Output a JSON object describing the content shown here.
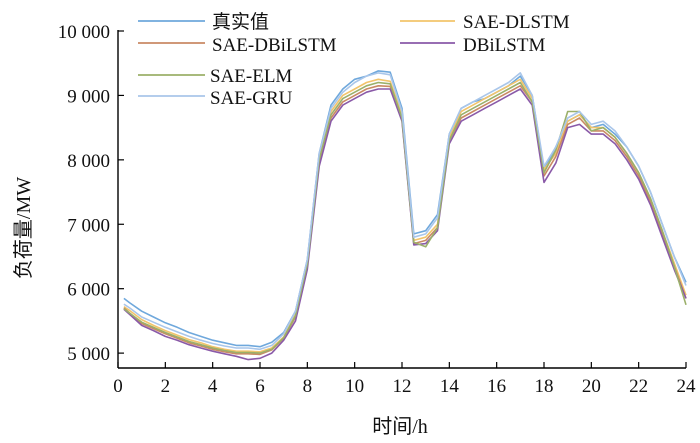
{
  "chart_data": {
    "type": "line",
    "xlabel": "时间/h",
    "ylabel": "负荷量/MW",
    "xlim": [
      0,
      24
    ],
    "ylim": [
      4800,
      10000
    ],
    "x_ticks": [
      "0",
      "2",
      "4",
      "6",
      "8",
      "10",
      "12",
      "14",
      "16",
      "18",
      "20",
      "22",
      "24"
    ],
    "y_ticks": [
      {
        "value": 5000,
        "label": "5 000"
      },
      {
        "value": 6000,
        "label": "6 000"
      },
      {
        "value": 7000,
        "label": "7 000"
      },
      {
        "value": 8000,
        "label": "8 000"
      },
      {
        "value": 9000,
        "label": "9 000"
      },
      {
        "value": 10000,
        "label": "10 000"
      }
    ],
    "grid": false,
    "legend_position": "top-left",
    "x": [
      0.25,
      0.5,
      1.0,
      1.5,
      2.0,
      2.5,
      3.0,
      3.5,
      4.0,
      4.5,
      5.0,
      5.5,
      6.0,
      6.5,
      7.0,
      7.5,
      8.0,
      8.5,
      9.0,
      9.5,
      10.0,
      10.5,
      11.0,
      11.5,
      12.0,
      12.5,
      13.0,
      13.5,
      14.0,
      14.5,
      15.0,
      15.5,
      16.0,
      16.5,
      17.0,
      17.5,
      18.0,
      18.5,
      19.0,
      19.5,
      20.0,
      20.5,
      21.0,
      21.5,
      22.0,
      22.5,
      23.0,
      23.5,
      24.0
    ],
    "series": [
      {
        "name": "真实值",
        "color": "#6fa8dc",
        "values": [
          5850,
          5780,
          5650,
          5560,
          5470,
          5400,
          5320,
          5260,
          5200,
          5160,
          5120,
          5120,
          5100,
          5170,
          5320,
          5650,
          6450,
          8100,
          8850,
          9100,
          9250,
          9300,
          9380,
          9360,
          8800,
          6850,
          6900,
          7150,
          8400,
          8800,
          8900,
          8950,
          9050,
          9150,
          9300,
          9000,
          7850,
          8200,
          8600,
          8700,
          8500,
          8550,
          8400,
          8200,
          7900,
          7500,
          7000,
          6500,
          6100
        ]
      },
      {
        "name": "SAE-DLSTM",
        "color": "#f2c46b",
        "values": [
          5720,
          5660,
          5520,
          5430,
          5350,
          5280,
          5210,
          5160,
          5100,
          5060,
          5030,
          5030,
          5020,
          5080,
          5250,
          5600,
          6400,
          8050,
          8750,
          9000,
          9100,
          9200,
          9250,
          9220,
          8700,
          6750,
          6800,
          7000,
          8350,
          8750,
          8850,
          8950,
          9050,
          9150,
          9250,
          8950,
          7850,
          8100,
          8600,
          8700,
          8500,
          8500,
          8350,
          8100,
          7800,
          7400,
          6900,
          6400,
          5900
        ]
      },
      {
        "name": "SAE-DBiLSTM",
        "color": "#c98a64",
        "values": [
          5700,
          5620,
          5460,
          5380,
          5300,
          5230,
          5160,
          5110,
          5060,
          5020,
          4990,
          4990,
          4980,
          5050,
          5230,
          5560,
          6350,
          7950,
          8650,
          8900,
          9000,
          9100,
          9150,
          9140,
          8620,
          6700,
          6750,
          6950,
          8300,
          8650,
          8750,
          8850,
          8950,
          9050,
          9150,
          8900,
          7750,
          8050,
          8550,
          8650,
          8450,
          8450,
          8300,
          8050,
          7750,
          7350,
          6850,
          6350,
          5850
        ]
      },
      {
        "name": "DBiLSTM",
        "color": "#8a5aa8",
        "values": [
          5680,
          5600,
          5430,
          5350,
          5260,
          5200,
          5130,
          5080,
          5030,
          4990,
          4950,
          4900,
          4920,
          5000,
          5200,
          5500,
          6300,
          7900,
          8600,
          8850,
          8950,
          9050,
          9100,
          9100,
          8600,
          6680,
          6700,
          6900,
          8250,
          8600,
          8700,
          8800,
          8900,
          9000,
          9100,
          8850,
          7650,
          7950,
          8500,
          8550,
          8400,
          8400,
          8250,
          8000,
          7700,
          7300,
          6800,
          6300,
          5850
        ]
      },
      {
        "name": "SAE-ELM",
        "color": "#9bb06a",
        "values": [
          5690,
          5620,
          5480,
          5400,
          5320,
          5250,
          5180,
          5130,
          5080,
          5040,
          5010,
          5010,
          5000,
          5060,
          5240,
          5580,
          6380,
          8000,
          8700,
          8950,
          9050,
          9150,
          9200,
          9180,
          8650,
          6720,
          6650,
          6950,
          8300,
          8700,
          8800,
          8900,
          9000,
          9100,
          9200,
          8900,
          7800,
          8150,
          8750,
          8750,
          8450,
          8500,
          8350,
          8100,
          7800,
          7400,
          6900,
          6350,
          5750
        ]
      },
      {
        "name": "SAE-GRU",
        "color": "#a9c6ea",
        "values": [
          5760,
          5700,
          5560,
          5480,
          5400,
          5330,
          5260,
          5200,
          5150,
          5110,
          5080,
          5080,
          5060,
          5120,
          5300,
          5650,
          6450,
          8100,
          8800,
          9050,
          9200,
          9300,
          9350,
          9320,
          8750,
          6800,
          6850,
          7100,
          8400,
          8800,
          8900,
          9000,
          9100,
          9200,
          9350,
          9000,
          7900,
          8200,
          8650,
          8750,
          8550,
          8600,
          8450,
          8200,
          7900,
          7500,
          7000,
          6500,
          6050
        ]
      }
    ]
  }
}
